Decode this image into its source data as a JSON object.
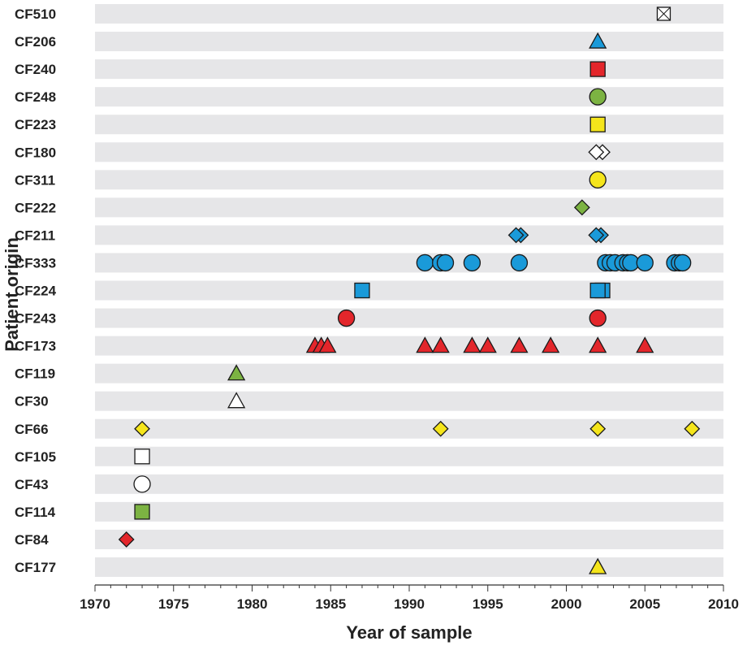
{
  "chart_data": {
    "type": "scatter",
    "xlabel": "Year of sample",
    "ylabel": "Patient origin",
    "xlim": [
      1970,
      2010
    ],
    "xticks": [
      1970,
      1975,
      1980,
      1985,
      1990,
      1995,
      2000,
      2005,
      2010
    ],
    "grid": "alternating horizontal bands per row",
    "colors": {
      "blue": "#1a9ad9",
      "red": "#e3262b",
      "green": "#7cb342",
      "yellow": "#f5e51b",
      "white": "#ffffff",
      "band": "#e6e6e8"
    },
    "rows": [
      {
        "label": "CF510",
        "points": [
          {
            "x": 2006.2,
            "shape": "crossed-square",
            "color": "white"
          }
        ]
      },
      {
        "label": "CF206",
        "points": [
          {
            "x": 2002.0,
            "shape": "triangle",
            "color": "blue"
          }
        ]
      },
      {
        "label": "CF240",
        "points": [
          {
            "x": 2002.0,
            "shape": "square",
            "color": "red"
          }
        ]
      },
      {
        "label": "CF248",
        "points": [
          {
            "x": 2002.0,
            "shape": "circle",
            "color": "green"
          }
        ]
      },
      {
        "label": "CF223",
        "points": [
          {
            "x": 2002.0,
            "shape": "square",
            "color": "yellow"
          }
        ]
      },
      {
        "label": "CF180",
        "points": [
          {
            "x": 2002.3,
            "shape": "diamond",
            "color": "white"
          },
          {
            "x": 2001.9,
            "shape": "diamond",
            "color": "white"
          }
        ]
      },
      {
        "label": "CF311",
        "points": [
          {
            "x": 2002.0,
            "shape": "circle",
            "color": "yellow"
          }
        ]
      },
      {
        "label": "CF222",
        "points": [
          {
            "x": 2001.0,
            "shape": "diamond",
            "color": "green"
          }
        ]
      },
      {
        "label": "CF211",
        "points": [
          {
            "x": 1997.1,
            "shape": "diamond",
            "color": "blue"
          },
          {
            "x": 1996.8,
            "shape": "diamond",
            "color": "blue"
          },
          {
            "x": 2002.2,
            "shape": "diamond",
            "color": "blue"
          },
          {
            "x": 2001.9,
            "shape": "diamond",
            "color": "blue"
          }
        ]
      },
      {
        "label": "CF333",
        "points": [
          {
            "x": 1991.0,
            "shape": "circle",
            "color": "blue"
          },
          {
            "x": 1992.0,
            "shape": "circle",
            "color": "blue"
          },
          {
            "x": 1992.3,
            "shape": "circle",
            "color": "blue"
          },
          {
            "x": 1994.0,
            "shape": "circle",
            "color": "blue"
          },
          {
            "x": 1997.0,
            "shape": "circle",
            "color": "blue"
          },
          {
            "x": 2002.5,
            "shape": "circle",
            "color": "blue"
          },
          {
            "x": 2002.8,
            "shape": "circle",
            "color": "blue"
          },
          {
            "x": 2003.1,
            "shape": "circle",
            "color": "blue"
          },
          {
            "x": 2003.6,
            "shape": "circle",
            "color": "blue"
          },
          {
            "x": 2003.9,
            "shape": "circle",
            "color": "blue"
          },
          {
            "x": 2004.1,
            "shape": "circle",
            "color": "blue"
          },
          {
            "x": 2005.0,
            "shape": "circle",
            "color": "blue"
          },
          {
            "x": 2006.9,
            "shape": "circle",
            "color": "blue"
          },
          {
            "x": 2007.2,
            "shape": "circle",
            "color": "blue"
          },
          {
            "x": 2007.4,
            "shape": "circle",
            "color": "blue"
          }
        ]
      },
      {
        "label": "CF224",
        "points": [
          {
            "x": 1987.0,
            "shape": "square",
            "color": "blue"
          },
          {
            "x": 2002.3,
            "shape": "square",
            "color": "blue"
          },
          {
            "x": 2002.0,
            "shape": "square",
            "color": "blue"
          }
        ]
      },
      {
        "label": "CF243",
        "points": [
          {
            "x": 1986.0,
            "shape": "circle",
            "color": "red"
          },
          {
            "x": 2002.0,
            "shape": "circle",
            "color": "red"
          }
        ]
      },
      {
        "label": "CF173",
        "points": [
          {
            "x": 1984.0,
            "shape": "triangle",
            "color": "red"
          },
          {
            "x": 1984.4,
            "shape": "triangle",
            "color": "red"
          },
          {
            "x": 1984.8,
            "shape": "triangle",
            "color": "red"
          },
          {
            "x": 1991.0,
            "shape": "triangle",
            "color": "red"
          },
          {
            "x": 1992.0,
            "shape": "triangle",
            "color": "red"
          },
          {
            "x": 1994.0,
            "shape": "triangle",
            "color": "red"
          },
          {
            "x": 1995.0,
            "shape": "triangle",
            "color": "red"
          },
          {
            "x": 1997.0,
            "shape": "triangle",
            "color": "red"
          },
          {
            "x": 1999.0,
            "shape": "triangle",
            "color": "red"
          },
          {
            "x": 2002.0,
            "shape": "triangle",
            "color": "red"
          },
          {
            "x": 2005.0,
            "shape": "triangle",
            "color": "red"
          }
        ]
      },
      {
        "label": "CF119",
        "points": [
          {
            "x": 1979.0,
            "shape": "triangle",
            "color": "green"
          }
        ]
      },
      {
        "label": "CF30",
        "points": [
          {
            "x": 1979.0,
            "shape": "triangle",
            "color": "white"
          }
        ]
      },
      {
        "label": "CF66",
        "points": [
          {
            "x": 1973.0,
            "shape": "diamond",
            "color": "yellow"
          },
          {
            "x": 1992.0,
            "shape": "diamond",
            "color": "yellow"
          },
          {
            "x": 2002.0,
            "shape": "diamond",
            "color": "yellow"
          },
          {
            "x": 2008.0,
            "shape": "diamond",
            "color": "yellow"
          }
        ]
      },
      {
        "label": "CF105",
        "points": [
          {
            "x": 1973.0,
            "shape": "square",
            "color": "white"
          }
        ]
      },
      {
        "label": "CF43",
        "points": [
          {
            "x": 1973.0,
            "shape": "circle",
            "color": "white"
          }
        ]
      },
      {
        "label": "CF114",
        "points": [
          {
            "x": 1973.0,
            "shape": "square",
            "color": "green"
          }
        ]
      },
      {
        "label": "CF84",
        "points": [
          {
            "x": 1972.0,
            "shape": "diamond",
            "color": "red"
          }
        ]
      },
      {
        "label": "CF177",
        "points": [
          {
            "x": 2002.0,
            "shape": "triangle",
            "color": "yellow"
          }
        ]
      }
    ]
  }
}
